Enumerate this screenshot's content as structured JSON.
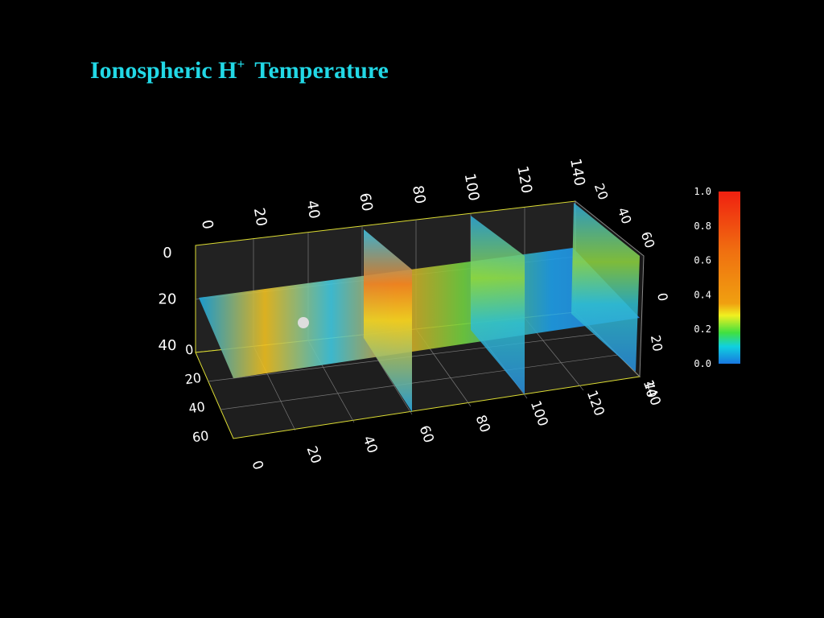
{
  "title": {
    "main": "Ionospheric H",
    "superscript": "+",
    "rest": "Temperature"
  },
  "colorbar": {
    "labels": [
      "1.0",
      "0.8",
      "0.6",
      "0.4",
      "0.2",
      "0.0"
    ]
  },
  "axes": {
    "x_top": [
      "0",
      "20",
      "40",
      "60",
      "80",
      "100",
      "120",
      "140"
    ],
    "x_bottom": [
      "0",
      "20",
      "40",
      "60",
      "80",
      "100",
      "120",
      "140"
    ],
    "z_left": [
      "0",
      "20",
      "40"
    ],
    "y_left": [
      "0",
      "20",
      "40",
      "60"
    ],
    "y_right": [
      "20",
      "40",
      "60"
    ],
    "z_right": [
      "0",
      "20",
      "40"
    ]
  }
}
